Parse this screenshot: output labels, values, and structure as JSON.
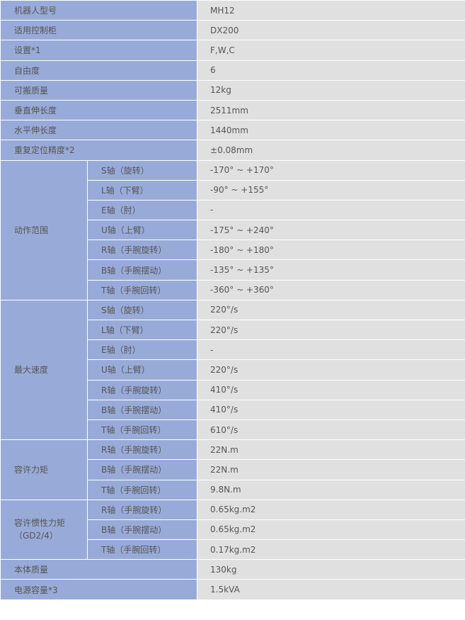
{
  "colors": {
    "label_bg": "#98abd8",
    "value_bg": "#e0e0e0",
    "text": "#555555"
  },
  "simple_rows_top": [
    {
      "label": "机器人型号",
      "value": "MH12"
    },
    {
      "label": "适用控制柜",
      "value": "DX200"
    },
    {
      "label": "设置*1",
      "value": "F,W,C"
    },
    {
      "label": "自由度",
      "value": "6"
    },
    {
      "label": "可搬质量",
      "value": "12kg"
    },
    {
      "label": "垂直伸长度",
      "value": "2511mm"
    },
    {
      "label": "水平伸长度",
      "value": "1440mm"
    },
    {
      "label": "重复定位精度*2",
      "value": "±0.08mm"
    }
  ],
  "groups": [
    {
      "label": "动作范围",
      "rows": [
        {
          "axis": "S轴（旋转）",
          "value": "-170° ~ +170°"
        },
        {
          "axis": "L轴（下臂）",
          "value": "-90° ~ +155°"
        },
        {
          "axis": "E轴（肘）",
          "value": "-"
        },
        {
          "axis": "U轴（上臂）",
          "value": "-175° ~ +240°"
        },
        {
          "axis": "R轴（手腕旋转）",
          "value": "-180° ~ +180°"
        },
        {
          "axis": "B轴（手腕摆动）",
          "value": "-135° ~ +135°"
        },
        {
          "axis": "T轴（手腕回转）",
          "value": "-360° ~ +360°"
        }
      ]
    },
    {
      "label": "最大速度",
      "rows": [
        {
          "axis": "S轴（旋转）",
          "value": "220°/s"
        },
        {
          "axis": "L轴（下臂）",
          "value": "220°/s"
        },
        {
          "axis": "E轴（肘）",
          "value": "-"
        },
        {
          "axis": "U轴（上臂）",
          "value": "220°/s"
        },
        {
          "axis": "R轴（手腕旋转）",
          "value": "410°/s"
        },
        {
          "axis": "B轴（手腕摆动）",
          "value": "410°/s"
        },
        {
          "axis": "T轴（手腕回转）",
          "value": "610°/s"
        }
      ]
    },
    {
      "label": "容许力矩",
      "rows": [
        {
          "axis": "R轴（手腕旋转）",
          "value": "22N.m"
        },
        {
          "axis": "B轴（手腕摆动）",
          "value": "22N.m"
        },
        {
          "axis": "T轴（手腕回转）",
          "value": "9.8N.m"
        }
      ]
    },
    {
      "label": "容许惯性力矩",
      "label2": "（GD2/4）",
      "rows": [
        {
          "axis": "R轴（手腕旋转）",
          "value": "0.65kg.m2"
        },
        {
          "axis": "B轴（手腕摆动）",
          "value": "0.65kg.m2"
        },
        {
          "axis": "T轴（手腕回转）",
          "value": "0.17kg.m2"
        }
      ]
    }
  ],
  "simple_rows_bottom": [
    {
      "label": "本体质量",
      "value": "130kg"
    },
    {
      "label": "电源容量*3",
      "value": "1.5kVA"
    }
  ]
}
